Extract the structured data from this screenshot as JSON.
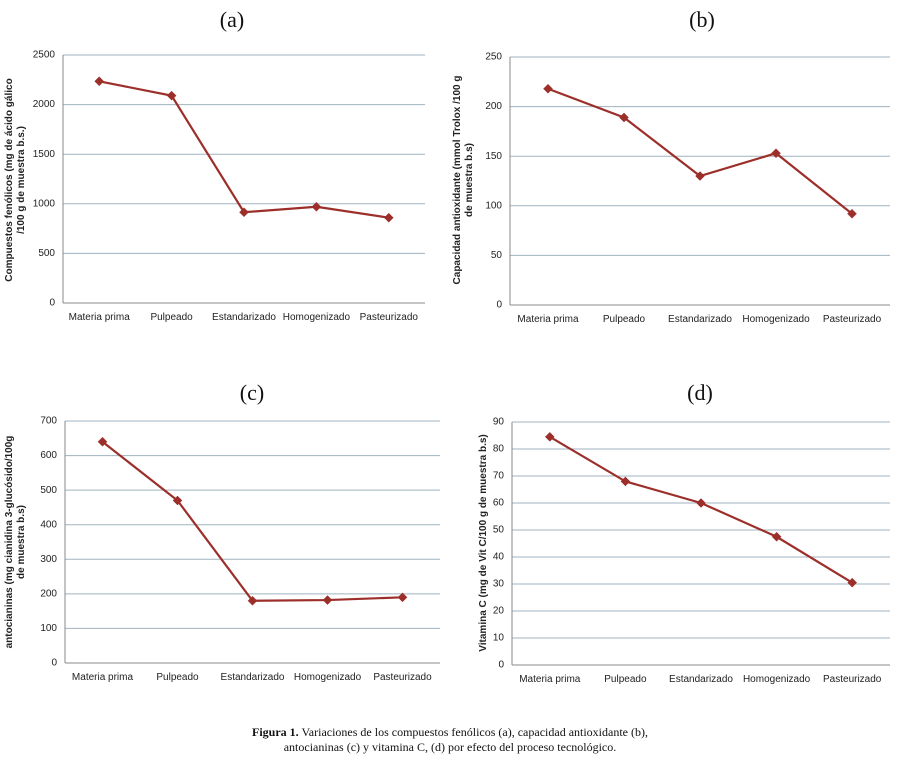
{
  "chart_data": [
    {
      "type": "line",
      "panel_label": "(a)",
      "categories": [
        "Materia prima",
        "Pulpeado",
        "Estandarizado",
        "Homogenizado",
        "Pasteurizado"
      ],
      "values": [
        2235,
        2090,
        915,
        970,
        860
      ],
      "ylabel_lines": [
        "Compuestos fenólicos (mg de ácido gálico",
        "/100 g de muestra b.s.)"
      ],
      "ylim": [
        0,
        2500
      ],
      "yticks": [
        0,
        500,
        1000,
        1500,
        2000,
        2500
      ],
      "grid": true,
      "color": "#9c2f2a"
    },
    {
      "type": "line",
      "panel_label": "(b)",
      "categories": [
        "Materia prima",
        "Pulpeado",
        "Estandarizado",
        "Homogenizado",
        "Pasteurizado"
      ],
      "values": [
        218,
        189,
        130,
        153,
        92
      ],
      "ylabel_lines": [
        "Capacidad antioxidante  (mmol Trolox /100 g",
        "de muestra b.s)"
      ],
      "ylim": [
        0,
        250
      ],
      "yticks": [
        0,
        50,
        100,
        150,
        200,
        250
      ],
      "grid": true,
      "color": "#9c2f2a"
    },
    {
      "type": "line",
      "panel_label": "(c)",
      "categories": [
        "Materia prima",
        "Pulpeado",
        "Estandarizado",
        "Homogenizado",
        "Pasteurizado"
      ],
      "values": [
        640,
        470,
        180,
        182,
        190
      ],
      "ylabel_lines": [
        "antocianinas (mg cianidina 3-glucósido/100g",
        "de muestra b.s)"
      ],
      "ylim": [
        0,
        700
      ],
      "yticks": [
        0,
        100,
        200,
        300,
        400,
        500,
        600,
        700
      ],
      "grid": true,
      "color": "#9c2f2a"
    },
    {
      "type": "line",
      "panel_label": "(d)",
      "categories": [
        "Materia prima",
        "Pulpeado",
        "Estandarizado",
        "Homogenizado",
        "Pasteurizado"
      ],
      "values": [
        84.5,
        68,
        60,
        47.5,
        30.5
      ],
      "ylabel_lines": [
        "Vitamina C (mg de Vit C/100 g de muestra b.s)"
      ],
      "ylim": [
        0,
        90
      ],
      "yticks": [
        0,
        10,
        20,
        30,
        40,
        50,
        60,
        70,
        80,
        90
      ],
      "grid": true,
      "color": "#9c2f2a"
    }
  ],
  "caption": {
    "bold": "Figura 1.",
    "line1": " Variaciones de los compuestos fenólicos (a), capacidad antioxidante (b),",
    "line2": "antocianinas (c) y vitamina C, (d) por efecto del proceso tecnológico."
  }
}
